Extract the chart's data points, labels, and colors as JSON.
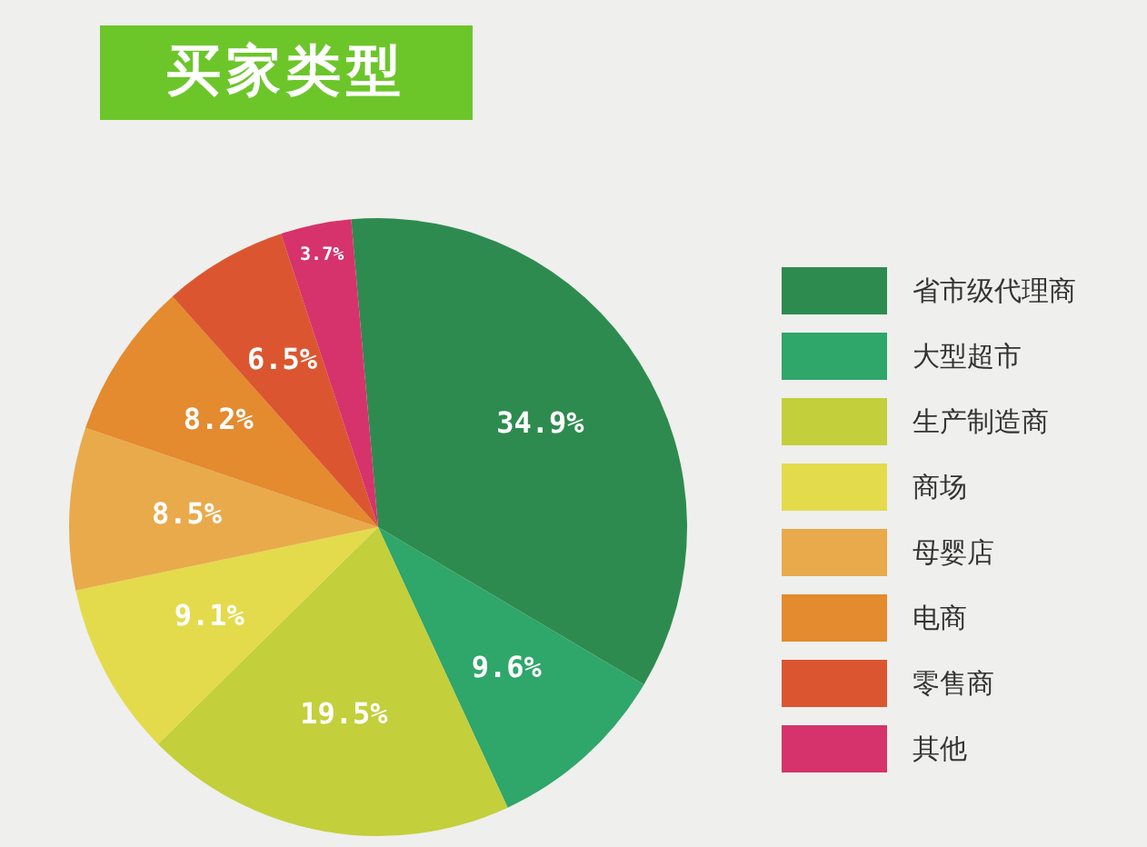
{
  "chart_data": {
    "type": "pie",
    "title": "买家类型",
    "categories": [
      "省市级代理商",
      "大型超市",
      "生产制造商",
      "商场",
      "母婴店",
      "电商",
      "零售商",
      "其他"
    ],
    "values": [
      34.9,
      9.6,
      19.5,
      9.1,
      8.5,
      8.2,
      6.5,
      3.7
    ],
    "value_labels": [
      "34.9%",
      "9.6%",
      "19.5%",
      "9.1%",
      "8.5%",
      "8.2%",
      "6.5%",
      "3.7%"
    ],
    "colors": [
      "#2e8b4f",
      "#2fa66a",
      "#c3cf3b",
      "#e3db4b",
      "#e9aa4c",
      "#e48a2f",
      "#db5630",
      "#d6336c"
    ],
    "legend": "right"
  }
}
